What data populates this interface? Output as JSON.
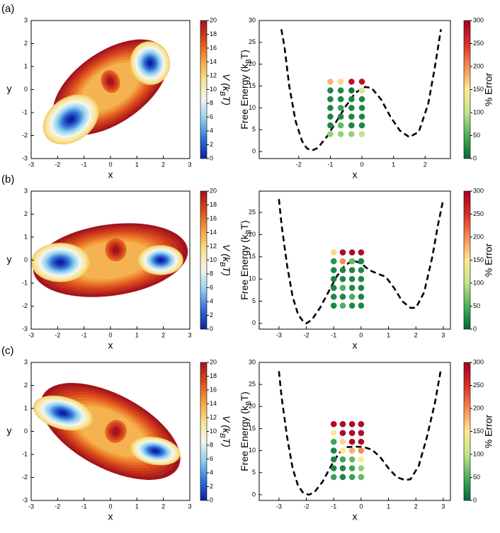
{
  "chart_data": [
    {
      "type": "contour",
      "panel_label": "(a)",
      "xlabel": "x",
      "ylabel": "y",
      "xlim": [
        -3,
        3
      ],
      "ylim": [
        -3,
        3
      ],
      "xticks": [
        -3,
        -2,
        -1,
        0,
        1,
        2,
        3
      ],
      "yticks": [
        -3,
        -2,
        -1,
        0,
        1,
        2,
        3
      ],
      "colorbar": {
        "label": [
          "V (k",
          "B",
          "T)"
        ],
        "lim": [
          0,
          20
        ],
        "ticks": [
          0,
          2,
          4,
          6,
          8,
          10,
          12,
          14,
          16,
          18,
          20
        ],
        "colors": [
          "#1020a0",
          "#2f6fd8",
          "#8fd0ee",
          "#f4f4f0",
          "#f6e48e",
          "#f4a23c",
          "#dc4a1c",
          "#a3141c"
        ]
      }
    },
    {
      "type": "line",
      "xlabel": "x",
      "ylabel": [
        "Free Energy (k",
        "B",
        "T)"
      ],
      "xlim": [
        -3.25,
        2.8
      ],
      "ylim": [
        -1.6,
        30
      ],
      "xticks": [
        -2,
        -1,
        0,
        1,
        2
      ],
      "yticks": [
        0,
        5,
        10,
        15,
        20,
        25,
        30
      ],
      "line_color": "#000000",
      "x": [
        -2.55,
        -2.45,
        -2.3,
        -2.1,
        -1.9,
        -1.75,
        -1.6,
        -1.4,
        -1.1,
        -0.8,
        -0.5,
        -0.2,
        0.1,
        0.3,
        0.6,
        0.9,
        1.2,
        1.5,
        1.8,
        2.1,
        2.3,
        2.5
      ],
      "y": [
        28,
        24,
        15,
        7,
        2.5,
        0.8,
        0.2,
        0.8,
        3.5,
        7,
        10.5,
        13.5,
        14.8,
        14.6,
        12,
        8,
        4.8,
        3.3,
        4.5,
        11,
        19,
        28
      ],
      "points": {
        "x": [
          -1,
          -0.67,
          -0.33,
          0,
          -1,
          -0.67,
          -0.33,
          0,
          -1,
          -0.67,
          -0.33,
          0,
          -1,
          -0.67,
          -0.33,
          0,
          -1,
          -0.67,
          -0.33,
          0,
          -1,
          -0.67,
          -0.33,
          0,
          -1,
          -0.67,
          -0.33,
          0
        ],
        "y": [
          16,
          16,
          16,
          16,
          14,
          14,
          14,
          14,
          12,
          12,
          12,
          12,
          10,
          10,
          10,
          10,
          8,
          8,
          8,
          8,
          6,
          6,
          6,
          6,
          4,
          4,
          4,
          4
        ],
        "error": [
          180,
          160,
          280,
          280,
          20,
          20,
          10,
          120,
          20,
          20,
          20,
          20,
          20,
          40,
          20,
          20,
          20,
          20,
          20,
          20,
          20,
          60,
          20,
          20,
          80,
          80,
          80,
          100
        ]
      },
      "colorbar": {
        "label": "% Error",
        "lim": [
          0,
          300
        ],
        "ticks": [
          0,
          50,
          100,
          150,
          200,
          250,
          300
        ],
        "colors": [
          "#006837",
          "#4bb05c",
          "#c4e58a",
          "#fee991",
          "#f88d52",
          "#d73027",
          "#a50026"
        ]
      }
    },
    {
      "type": "contour",
      "panel_label": "(b)",
      "xlabel": "x",
      "ylabel": "y",
      "xlim": [
        -3,
        3
      ],
      "ylim": [
        -3,
        3
      ],
      "xticks": [
        -3,
        -2,
        -1,
        0,
        1,
        2,
        3
      ],
      "yticks": [
        -3,
        -2,
        -1,
        0,
        1,
        2,
        3
      ],
      "colorbar": {
        "label": [
          "V (k",
          "B",
          "T)"
        ],
        "lim": [
          0,
          20
        ],
        "ticks": [
          0,
          2,
          4,
          6,
          8,
          10,
          12,
          14,
          16,
          18,
          20
        ],
        "colors": [
          "#1020a0",
          "#2f6fd8",
          "#8fd0ee",
          "#f4f4f0",
          "#f6e48e",
          "#f4a23c",
          "#dc4a1c",
          "#a3141c"
        ]
      }
    },
    {
      "type": "line",
      "xlabel": "x",
      "ylabel": [
        "Free Energy (k",
        "B",
        "T)"
      ],
      "xlim": [
        -3.72,
        3.26
      ],
      "ylim": [
        -1.3,
        29.8
      ],
      "xticks": [
        -3,
        -2,
        -1,
        0,
        1,
        2,
        3
      ],
      "yticks": [
        0,
        5,
        10,
        15,
        20,
        25
      ],
      "line_color": "#000000",
      "x": [
        -3,
        -2.9,
        -2.7,
        -2.5,
        -2.3,
        -2.1,
        -2,
        -1.8,
        -1.5,
        -1.2,
        -0.9,
        -0.6,
        -0.3,
        0,
        0.3,
        0.6,
        0.9,
        1.2,
        1.5,
        1.8,
        2,
        2.3,
        2.6,
        2.8,
        3
      ],
      "y": [
        28,
        22,
        13,
        6,
        2,
        0.3,
        0,
        0.8,
        3.5,
        7,
        10.5,
        13,
        14.2,
        13.5,
        12,
        11.2,
        10.5,
        8,
        5,
        3.5,
        3.5,
        7,
        15,
        22,
        28
      ],
      "points": {
        "x": [
          -1,
          -0.67,
          -0.33,
          0,
          -1,
          -0.67,
          -0.33,
          0,
          -1,
          -0.67,
          -0.33,
          0,
          -1,
          -0.67,
          -0.33,
          0,
          -1,
          -0.67,
          -0.33,
          0,
          -1,
          -0.67,
          -0.33,
          0,
          -1,
          -0.67,
          -0.33,
          0
        ],
        "y": [
          16,
          16,
          16,
          16,
          14,
          14,
          14,
          14,
          12,
          12,
          12,
          12,
          10,
          10,
          10,
          10,
          8,
          8,
          8,
          8,
          6,
          6,
          6,
          6,
          4,
          4,
          4,
          4
        ],
        "error": [
          160,
          290,
          290,
          290,
          30,
          200,
          60,
          20,
          20,
          20,
          20,
          20,
          20,
          20,
          20,
          20,
          20,
          50,
          20,
          20,
          20,
          20,
          50,
          20,
          20,
          50,
          20,
          20
        ]
      },
      "colorbar": {
        "label": "% Error",
        "lim": [
          0,
          300
        ],
        "ticks": [
          0,
          50,
          100,
          150,
          200,
          250,
          300
        ],
        "colors": [
          "#006837",
          "#4bb05c",
          "#c4e58a",
          "#fee991",
          "#f88d52",
          "#d73027",
          "#a50026"
        ]
      }
    },
    {
      "type": "contour",
      "panel_label": "(c)",
      "xlabel": "x",
      "ylabel": "y",
      "xlim": [
        -3,
        3
      ],
      "ylim": [
        -3,
        3
      ],
      "xticks": [
        -3,
        -2,
        -1,
        0,
        1,
        2,
        3
      ],
      "yticks": [
        -3,
        -2,
        -1,
        0,
        1,
        2,
        3
      ],
      "colorbar": {
        "label": [
          "V (k",
          "B",
          "T)"
        ],
        "lim": [
          0,
          20
        ],
        "ticks": [
          0,
          2,
          4,
          6,
          8,
          10,
          12,
          14,
          16,
          18,
          20
        ],
        "colors": [
          "#1020a0",
          "#2f6fd8",
          "#8fd0ee",
          "#f4f4f0",
          "#f6e48e",
          "#f4a23c",
          "#dc4a1c",
          "#a3141c"
        ]
      }
    },
    {
      "type": "line",
      "xlabel": "x",
      "ylabel": [
        "Free Energy (k",
        "B",
        "T)"
      ],
      "xlim": [
        -3.72,
        3.26
      ],
      "ylim": [
        -1.3,
        30
      ],
      "xticks": [
        -3,
        -2,
        -1,
        0,
        1,
        2,
        3
      ],
      "yticks": [
        0,
        5,
        10,
        15,
        20,
        25,
        30
      ],
      "line_color": "#000000",
      "x": [
        -3,
        -2.9,
        -2.7,
        -2.5,
        -2.3,
        -2.1,
        -1.9,
        -1.7,
        -1.4,
        -1.1,
        -0.8,
        -0.5,
        -0.2,
        0.1,
        0.4,
        0.7,
        1,
        1.3,
        1.6,
        1.8,
        2.1,
        2.4,
        2.7,
        2.9
      ],
      "y": [
        28,
        22,
        13,
        6,
        2,
        0.3,
        0,
        0.6,
        3,
        6.5,
        9.5,
        10.8,
        10.9,
        10.8,
        10.2,
        8.5,
        6,
        4,
        3.3,
        3.5,
        6.5,
        13,
        21,
        28
      ],
      "points": {
        "x": [
          -1,
          -0.67,
          -0.33,
          0,
          -1,
          -0.67,
          -0.33,
          0,
          -1,
          -0.67,
          -0.33,
          0,
          -1,
          -0.67,
          -0.33,
          0,
          -1,
          -0.67,
          -0.33,
          0,
          -1,
          -0.67,
          -0.33,
          0,
          -1,
          -0.67,
          -0.33,
          0
        ],
        "y": [
          16,
          16,
          16,
          16,
          14,
          14,
          14,
          14,
          12,
          12,
          12,
          12,
          10,
          10,
          10,
          10,
          8,
          8,
          8,
          8,
          6,
          6,
          6,
          6,
          4,
          4,
          4,
          4
        ],
        "error": [
          290,
          290,
          290,
          290,
          150,
          290,
          290,
          290,
          40,
          160,
          290,
          290,
          20,
          150,
          180,
          200,
          20,
          40,
          60,
          150,
          20,
          20,
          40,
          80,
          40,
          20,
          40,
          60
        ]
      },
      "colorbar": {
        "label": "% Error",
        "lim": [
          0,
          300
        ],
        "ticks": [
          0,
          50,
          100,
          150,
          200,
          250,
          300
        ],
        "colors": [
          "#006837",
          "#4bb05c",
          "#c4e58a",
          "#fee991",
          "#f88d52",
          "#d73027",
          "#a50026"
        ]
      }
    }
  ]
}
